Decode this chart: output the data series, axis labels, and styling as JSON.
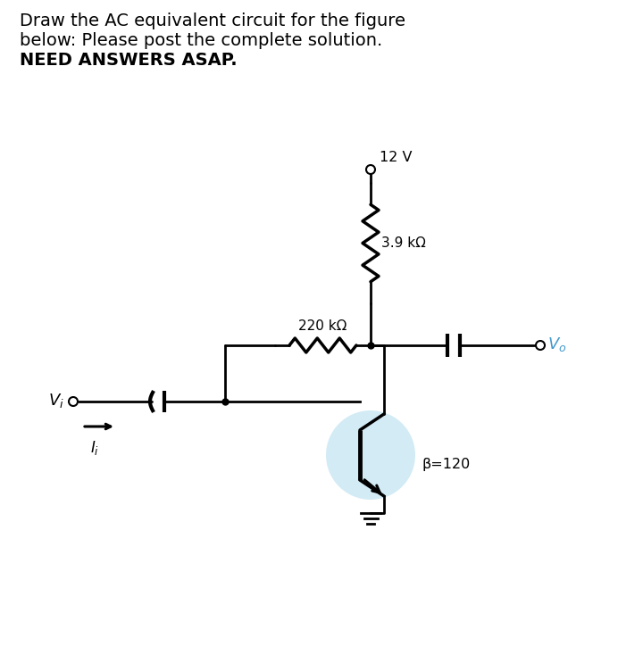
{
  "title_line1": "Draw the AC equivalent circuit for the figure",
  "title_line2": "below: Please post the complete solution.",
  "title_line3": "NEED ANSWERS ASAP.",
  "label_12v": "12 V",
  "label_39k": "3.9 kΩ",
  "label_220k": "220 kΩ",
  "label_beta": "β=120",
  "bg_color": "#ffffff",
  "text_color": "#000000",
  "line_color": "#000000",
  "transistor_circle_color": "#cce8f4",
  "vo_color": "#4499cc"
}
